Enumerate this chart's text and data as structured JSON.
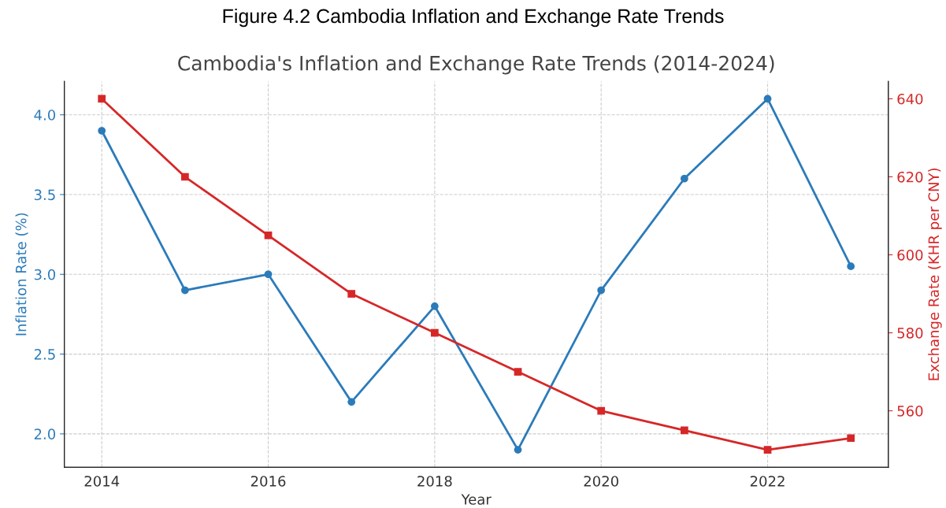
{
  "chart_data": {
    "type": "line",
    "title": "Figure 4.2 Cambodia Inflation and Exchange Rate Trends",
    "subtitle": "Cambodia's Inflation and Exchange Rate Trends (2014-2024)",
    "xlabel": "Year",
    "ylabel": "Inflation Rate (%)",
    "y2label": "Exchange Rate (KHR per CNY)",
    "x": [
      2014,
      2015,
      2016,
      2017,
      2018,
      2019,
      2020,
      2021,
      2022,
      2023
    ],
    "series": [
      {
        "color": "#2b7bba",
        "marker": "circle",
        "values": [
          3.9,
          2.9,
          3.0,
          2.2,
          2.8,
          1.9,
          2.9,
          3.6,
          4.1,
          3.05
        ]
      },
      {
        "color": "#d62728",
        "marker": "square",
        "axis": "y2",
        "values": [
          640,
          620,
          605,
          590,
          580,
          570,
          560,
          555,
          550,
          553
        ]
      }
    ],
    "xlim": [
      2013.55,
      2023.45
    ],
    "xticks": [
      2014,
      2016,
      2018,
      2020,
      2022
    ],
    "ylim": [
      1.79,
      4.21
    ],
    "yticks": [
      {
        "value": 2,
        "label": "2.0"
      },
      2.5,
      {
        "value": 3,
        "label": "3.0"
      },
      3.5,
      {
        "value": 4,
        "label": "4.0"
      }
    ],
    "y2lim": [
      545.5,
      644.5
    ],
    "y2ticks": [
      560,
      580,
      600,
      620,
      640
    ],
    "grid": true,
    "line_style": "solid"
  }
}
